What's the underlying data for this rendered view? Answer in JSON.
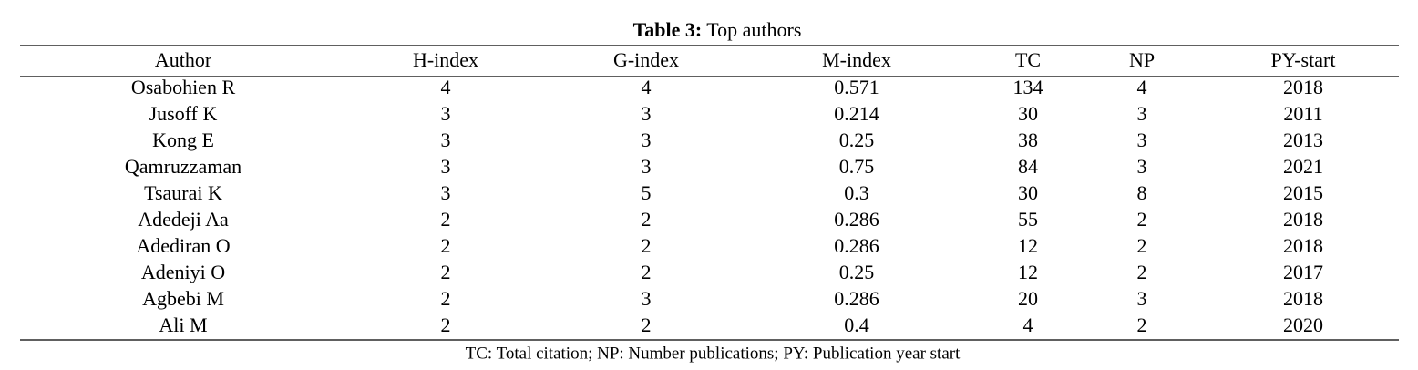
{
  "caption": {
    "label": "Table 3:",
    "text": "Top authors"
  },
  "table": {
    "header": [
      "Author",
      "H-index",
      "G-index",
      "M-index",
      "TC",
      "NP",
      "PY-start"
    ],
    "rows": [
      [
        "Osabohien R",
        4,
        4,
        0.571,
        134,
        4,
        2018
      ],
      [
        "Jusoff K",
        3,
        3,
        0.214,
        30,
        3,
        2011
      ],
      [
        "Kong E",
        3,
        3,
        0.25,
        38,
        3,
        2013
      ],
      [
        "Qamruzzaman",
        3,
        3,
        0.75,
        84,
        3,
        2021
      ],
      [
        "Tsaurai K",
        3,
        5,
        0.3,
        30,
        8,
        2015
      ],
      [
        "Adedeji Aa",
        2,
        2,
        0.286,
        55,
        2,
        2018
      ],
      [
        "Adediran O",
        2,
        2,
        0.286,
        12,
        2,
        2018
      ],
      [
        "Adeniyi O",
        2,
        2,
        0.25,
        12,
        2,
        2017
      ],
      [
        "Agbebi M",
        2,
        3,
        0.286,
        20,
        3,
        2018
      ],
      [
        "Ali M",
        2,
        2,
        0.4,
        4,
        2,
        2020
      ]
    ]
  },
  "footnote": "TC: Total citation; NP: Number publications; PY: Publication year start"
}
